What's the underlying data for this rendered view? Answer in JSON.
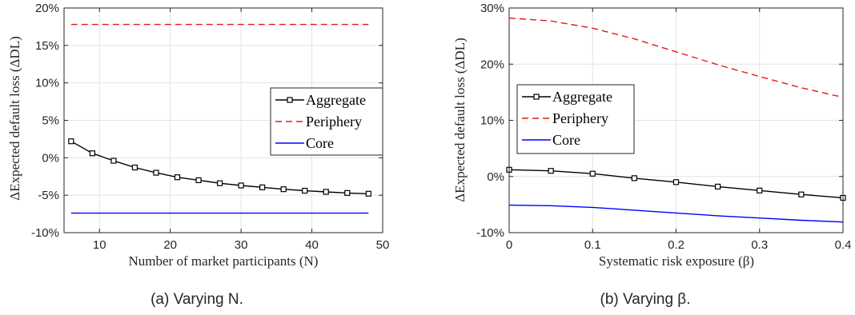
{
  "chart_data": [
    {
      "type": "line",
      "caption": "(a) Varying N.",
      "xlabel": "Number of market participants (N)",
      "ylabel": "ΔExpected default loss (ΔDL)",
      "xlim": [
        5,
        50
      ],
      "ylim": [
        -10,
        20
      ],
      "xticks": [
        10,
        20,
        30,
        40,
        50
      ],
      "xtick_labels": [
        "10",
        "20",
        "30",
        "40",
        "50"
      ],
      "yticks": [
        -10,
        -5,
        0,
        5,
        10,
        15,
        20
      ],
      "ytick_labels": [
        "-10%",
        "-5%",
        "0%",
        "5%",
        "10%",
        "15%",
        "20%"
      ],
      "grid": true,
      "legend_position": "center-right",
      "series": [
        {
          "name": "Aggregate",
          "color": "#000000",
          "style": "solid-square-markers",
          "x": [
            6,
            9,
            12,
            15,
            18,
            21,
            24,
            27,
            30,
            33,
            36,
            39,
            42,
            45,
            48
          ],
          "y": [
            2.2,
            0.6,
            -0.4,
            -1.3,
            -2.0,
            -2.6,
            -3.0,
            -3.4,
            -3.7,
            -3.95,
            -4.2,
            -4.4,
            -4.55,
            -4.7,
            -4.8
          ]
        },
        {
          "name": "Periphery",
          "color": "#e41a1c",
          "style": "dashed",
          "x": [
            6,
            48
          ],
          "y": [
            17.8,
            17.8
          ]
        },
        {
          "name": "Core",
          "color": "#0000ff",
          "style": "solid",
          "x": [
            6,
            48
          ],
          "y": [
            -7.4,
            -7.4
          ]
        }
      ]
    },
    {
      "type": "line",
      "caption": "(b) Varying β.",
      "xlabel": "Systematic risk exposure (β)",
      "ylabel": "ΔExpected default loss (ΔDL)",
      "xlim": [
        0,
        0.4
      ],
      "ylim": [
        -10,
        30
      ],
      "xticks": [
        0,
        0.1,
        0.2,
        0.3,
        0.4
      ],
      "xtick_labels": [
        "0",
        "0.1",
        "0.2",
        "0.3",
        "0.4"
      ],
      "yticks": [
        -10,
        0,
        10,
        20,
        30
      ],
      "ytick_labels": [
        "-10%",
        "0%",
        "10%",
        "20%",
        "30%"
      ],
      "grid": true,
      "legend_position": "center-left",
      "series": [
        {
          "name": "Aggregate",
          "color": "#000000",
          "style": "solid-square-markers",
          "x": [
            0,
            0.05,
            0.1,
            0.15,
            0.2,
            0.25,
            0.3,
            0.35,
            0.4
          ],
          "y": [
            1.2,
            1.0,
            0.5,
            -0.3,
            -1.0,
            -1.8,
            -2.5,
            -3.2,
            -3.8
          ]
        },
        {
          "name": "Periphery",
          "color": "#e41a1c",
          "style": "dashed",
          "x": [
            0,
            0.05,
            0.1,
            0.15,
            0.2,
            0.25,
            0.3,
            0.35,
            0.4
          ],
          "y": [
            28.2,
            27.7,
            26.4,
            24.5,
            22.2,
            19.9,
            17.8,
            15.8,
            14.1
          ]
        },
        {
          "name": "Core",
          "color": "#0000ff",
          "style": "solid",
          "x": [
            0,
            0.05,
            0.1,
            0.15,
            0.2,
            0.25,
            0.3,
            0.35,
            0.4
          ],
          "y": [
            -5.1,
            -5.2,
            -5.5,
            -6.0,
            -6.5,
            -7.0,
            -7.4,
            -7.8,
            -8.1
          ]
        }
      ]
    }
  ]
}
